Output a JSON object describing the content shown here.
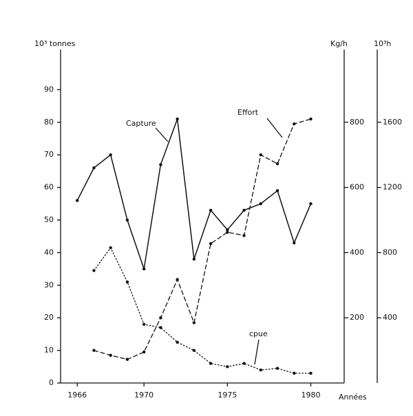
{
  "chart_data": {
    "type": "line",
    "ylabel": "10³ tonnes",
    "y2label": "Kg/h",
    "y3label": "10³h",
    "xlabel": "Années",
    "x": [
      1966,
      1967,
      1968,
      1969,
      1970,
      1971,
      1972,
      1973,
      1974,
      1975,
      1976,
      1977,
      1978,
      1979,
      1980
    ],
    "xlim": [
      1965,
      1982
    ],
    "xticks": [
      1966,
      1970,
      1975,
      1980
    ],
    "ylim": [
      0,
      100
    ],
    "yticks": [
      0,
      10,
      20,
      30,
      40,
      50,
      60,
      70,
      80,
      90
    ],
    "y2lim": [
      0,
      1000
    ],
    "y2ticks": [
      200,
      400,
      600,
      800
    ],
    "y3lim": [
      0,
      2000
    ],
    "y3ticks": [
      400,
      800,
      1200,
      1600
    ],
    "series": [
      {
        "name": "Capture",
        "color": "#111111",
        "line_style": "solid",
        "values": [
          56,
          66,
          70,
          50,
          35,
          67,
          81,
          38,
          53,
          47,
          53,
          55,
          59,
          43,
          55
        ]
      },
      {
        "name": "Effort",
        "color": "#111111",
        "line_style": "dashed",
        "axis": "y3",
        "values": [
          null,
          200,
          170,
          145,
          190,
          400,
          635,
          370,
          855,
          925,
          905,
          1400,
          1345,
          1590,
          1620
        ]
      },
      {
        "name": "cpue",
        "color": "#111111",
        "line_style": "dotted",
        "axis": "y2",
        "values": [
          null,
          345,
          415,
          310,
          180,
          170,
          125,
          100,
          60,
          50,
          60,
          40,
          45,
          30,
          30
        ]
      }
    ],
    "annotations": [
      "Capture",
      "Effort",
      "cpue"
    ]
  }
}
